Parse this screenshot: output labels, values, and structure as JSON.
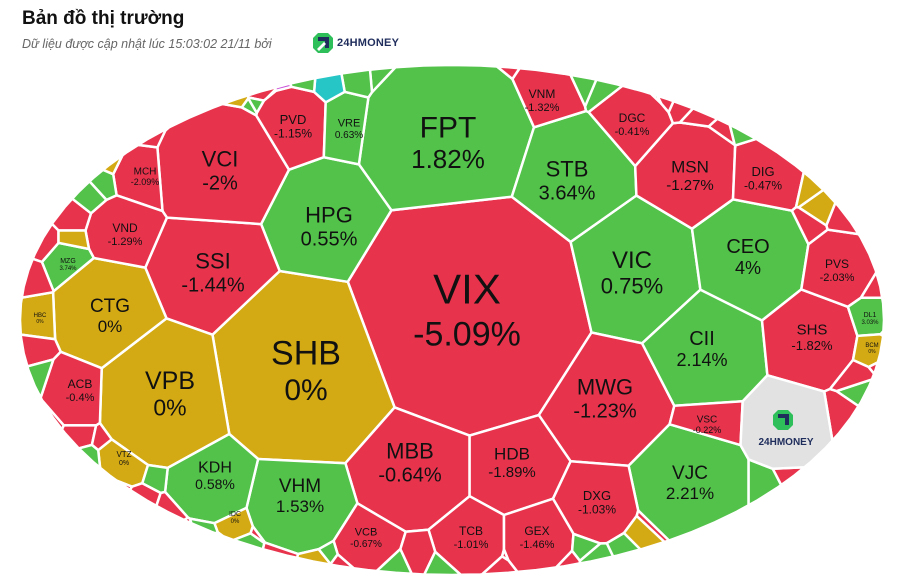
{
  "header": {
    "title": "Bản đồ thị trường",
    "subtitle": "Dữ liệu được cập nhật lúc 15:03:02 21/11 bởi",
    "brand": "24HMONEY"
  },
  "colors": {
    "down": "#e8334d",
    "up": "#52c24a",
    "flat": "#d4aa14",
    "ceiling": "#c84fd8",
    "floor": "#26c6c6",
    "neutral": "#e2e2e2",
    "brand_blue": "#1f2d5c",
    "brand_green": "#2fbf5a"
  },
  "chart_data": {
    "type": "treemap",
    "unit": "%",
    "cells": [
      {
        "ticker": "VIX",
        "change": "-5.09%",
        "value": -5.09,
        "color": "down"
      },
      {
        "ticker": "SHB",
        "change": "0%",
        "value": 0,
        "color": "flat"
      },
      {
        "ticker": "FPT",
        "change": "1.82%",
        "value": 1.82,
        "color": "up"
      },
      {
        "ticker": "HPG",
        "change": "0.55%",
        "value": 0.55,
        "color": "up"
      },
      {
        "ticker": "VIC",
        "change": "0.75%",
        "value": 0.75,
        "color": "up"
      },
      {
        "ticker": "STB",
        "change": "3.64%",
        "value": 3.64,
        "color": "up"
      },
      {
        "ticker": "SSI",
        "change": "-1.44%",
        "value": -1.44,
        "color": "down"
      },
      {
        "ticker": "MWG",
        "change": "-1.23%",
        "value": -1.23,
        "color": "down"
      },
      {
        "ticker": "MBB",
        "change": "-0.64%",
        "value": -0.64,
        "color": "down"
      },
      {
        "ticker": "HDB",
        "change": "-1.89%",
        "value": -1.89,
        "color": "down"
      },
      {
        "ticker": "VPB",
        "change": "0%",
        "value": 0,
        "color": "flat"
      },
      {
        "ticker": "VCI",
        "change": "-2%",
        "value": -2,
        "color": "down"
      },
      {
        "ticker": "CEO",
        "change": "4%",
        "value": 4,
        "color": "up"
      },
      {
        "ticker": "CII",
        "change": "2.14%",
        "value": 2.14,
        "color": "up"
      },
      {
        "ticker": "VJC",
        "change": "2.21%",
        "value": 2.21,
        "color": "up"
      },
      {
        "ticker": "VHM",
        "change": "1.53%",
        "value": 1.53,
        "color": "up"
      },
      {
        "ticker": "CTG",
        "change": "0%",
        "value": 0,
        "color": "flat"
      },
      {
        "ticker": "MSN",
        "change": "-1.27%",
        "value": -1.27,
        "color": "down"
      },
      {
        "ticker": "DXG",
        "change": "-1.03%",
        "value": -1.03,
        "color": "down"
      },
      {
        "ticker": "SHS",
        "change": "-1.82%",
        "value": -1.82,
        "color": "down"
      },
      {
        "ticker": "KDH",
        "change": "0.58%",
        "value": 0.58,
        "color": "up"
      },
      {
        "ticker": "DIG",
        "change": "-0.47%",
        "value": -0.47,
        "color": "down"
      },
      {
        "ticker": "PVD",
        "change": "-1.15%",
        "value": -1.15,
        "color": "down"
      },
      {
        "ticker": "VNM",
        "change": "-1.32%",
        "value": -1.32,
        "color": "down"
      },
      {
        "ticker": "DGC",
        "change": "-0.41%",
        "value": -0.41,
        "color": "down"
      },
      {
        "ticker": "MCH",
        "change": "-2.09%",
        "value": -2.09,
        "color": "down"
      },
      {
        "ticker": "VND",
        "change": "-1.29%",
        "value": -1.29,
        "color": "down"
      },
      {
        "ticker": "ACB",
        "change": "-0.4%",
        "value": -0.4,
        "color": "down"
      },
      {
        "ticker": "PVS",
        "change": "-2.03%",
        "value": -2.03,
        "color": "down"
      },
      {
        "ticker": "VCB",
        "change": "-0.67%",
        "value": -0.67,
        "color": "down"
      },
      {
        "ticker": "TCB",
        "change": "-1.01%",
        "value": -1.01,
        "color": "down"
      },
      {
        "ticker": "GEX",
        "change": "-1.46%",
        "value": -1.46,
        "color": "down"
      },
      {
        "ticker": "VRE",
        "change": "0.63%",
        "value": 0.63,
        "color": "up"
      },
      {
        "ticker": "VSC",
        "change": "-0.22%",
        "value": -0.22,
        "color": "down"
      },
      {
        "ticker": "VTZ",
        "change": "0%",
        "value": 0,
        "color": "flat"
      },
      {
        "ticker": "MZG",
        "change": "3.74%",
        "value": 3.74,
        "color": "up"
      },
      {
        "ticker": "HBC",
        "change": "0%",
        "value": 0,
        "color": "flat"
      },
      {
        "ticker": "IDC",
        "change": "0%",
        "value": 0,
        "color": "flat"
      },
      {
        "ticker": "DL1",
        "change": "3.03%",
        "value": 3.03,
        "color": "up"
      },
      {
        "ticker": "BCM",
        "change": "0%",
        "value": 0,
        "color": "flat"
      }
    ],
    "filler_cells": [
      {
        "color": "up"
      },
      {
        "color": "down"
      },
      {
        "color": "down"
      },
      {
        "color": "flat"
      },
      {
        "color": "down"
      },
      {
        "color": "down"
      },
      {
        "color": "up"
      },
      {
        "color": "down"
      },
      {
        "color": "down"
      },
      {
        "color": "down"
      },
      {
        "color": "up"
      },
      {
        "color": "down"
      },
      {
        "color": "down"
      },
      {
        "color": "down"
      },
      {
        "color": "up"
      },
      {
        "color": "down"
      },
      {
        "color": "up"
      },
      {
        "color": "down"
      },
      {
        "color": "up"
      },
      {
        "color": "down"
      },
      {
        "color": "down"
      },
      {
        "color": "down"
      },
      {
        "color": "flat"
      },
      {
        "color": "down"
      },
      {
        "color": "up"
      },
      {
        "color": "up"
      },
      {
        "color": "down"
      },
      {
        "color": "up"
      },
      {
        "color": "down"
      },
      {
        "color": "down"
      },
      {
        "color": "down"
      },
      {
        "color": "up"
      },
      {
        "color": "up"
      },
      {
        "color": "up"
      },
      {
        "color": "flat"
      },
      {
        "color": "down"
      },
      {
        "color": "up"
      },
      {
        "color": "down"
      },
      {
        "color": "down"
      },
      {
        "color": "down"
      },
      {
        "color": "up"
      },
      {
        "color": "down"
      },
      {
        "color": "down"
      },
      {
        "color": "down"
      },
      {
        "color": "down"
      },
      {
        "color": "down"
      },
      {
        "color": "flat"
      },
      {
        "color": "flat"
      },
      {
        "color": "down"
      },
      {
        "color": "up"
      },
      {
        "color": "up"
      },
      {
        "color": "down"
      },
      {
        "color": "down"
      },
      {
        "color": "down"
      },
      {
        "color": "down"
      },
      {
        "color": "up"
      },
      {
        "color": "up"
      },
      {
        "color": "down"
      },
      {
        "color": "up"
      },
      {
        "color": "flat"
      },
      {
        "color": "down"
      },
      {
        "color": "down"
      },
      {
        "color": "flat"
      },
      {
        "color": "down"
      },
      {
        "color": "up"
      },
      {
        "color": "up"
      },
      {
        "color": "floor"
      },
      {
        "color": "up"
      },
      {
        "color": "down"
      },
      {
        "color": "up"
      },
      {
        "color": "up"
      },
      {
        "color": "down"
      },
      {
        "color": "flat"
      },
      {
        "color": "up"
      },
      {
        "color": "up"
      },
      {
        "color": "flat"
      },
      {
        "color": "up"
      },
      {
        "color": "up"
      },
      {
        "color": "down"
      },
      {
        "color": "ceiling"
      }
    ],
    "logo_cell": {
      "label": "24HMONEY",
      "color": "neutral"
    }
  }
}
